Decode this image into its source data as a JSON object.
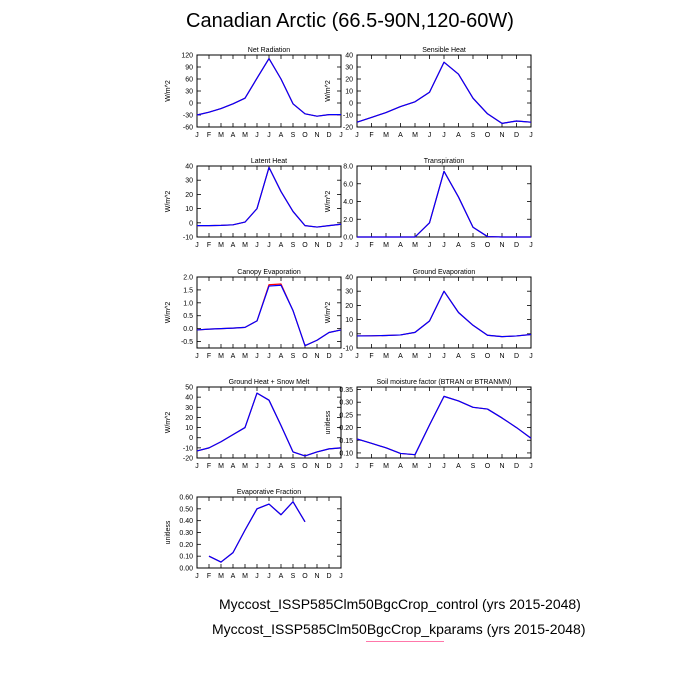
{
  "title": "Canadian Arctic (66.5-90N,120-60W)",
  "legend": [
    {
      "label": "Myccost_ISSP585Clm50BgcCrop_control (yrs 2015-2048)",
      "color": "#ff0000"
    },
    {
      "label": "Myccost_ISSP585Clm50BgcCrop_kparams (yrs 2015-2048)",
      "color": "#0000ff"
    }
  ],
  "colors": {
    "control": "#ff0000",
    "kparams": "#0000ff",
    "legend_marker": "#ff77aa"
  },
  "chart_data": [
    {
      "type": "line",
      "title": "Net Radiation",
      "ylabel": "W/m^2",
      "categories": [
        "J",
        "F",
        "M",
        "A",
        "M",
        "J",
        "J",
        "A",
        "S",
        "O",
        "N",
        "D",
        "J"
      ],
      "yticks": [
        120,
        90,
        60,
        30,
        0,
        -30,
        -60
      ],
      "ylim": [
        -60,
        120
      ],
      "series": [
        {
          "values": [
            -30,
            -23,
            -14,
            -2,
            12,
            62,
            111,
            60,
            -2,
            -27,
            -33,
            -29,
            -29
          ]
        },
        {
          "values": [
            -30,
            -23,
            -14,
            -2,
            12,
            62,
            111,
            60,
            -2,
            -27,
            -33,
            -29,
            -29
          ]
        }
      ]
    },
    {
      "type": "line",
      "title": "Sensible Heat",
      "ylabel": "W/m^2",
      "categories": [
        "J",
        "F",
        "M",
        "A",
        "M",
        "J",
        "J",
        "A",
        "S",
        "O",
        "N",
        "D",
        "J"
      ],
      "yticks": [
        40,
        30,
        20,
        10,
        0,
        -10,
        -20
      ],
      "ylim": [
        -20,
        40
      ],
      "series": [
        {
          "values": [
            -16,
            -12,
            -8,
            -3,
            1,
            9,
            34,
            24,
            4,
            -9,
            -17,
            -15,
            -16
          ]
        },
        {
          "values": [
            -16,
            -12,
            -8,
            -3,
            1,
            9,
            34,
            24,
            4,
            -9,
            -17,
            -15,
            -16
          ]
        }
      ]
    },
    {
      "type": "line",
      "title": "Latent Heat",
      "ylabel": "W/m^2",
      "categories": [
        "J",
        "F",
        "M",
        "A",
        "M",
        "J",
        "J",
        "A",
        "S",
        "O",
        "N",
        "D",
        "J"
      ],
      "yticks": [
        40,
        30,
        20,
        10,
        0,
        -10
      ],
      "ylim": [
        -10,
        40
      ],
      "series": [
        {
          "values": [
            -2,
            -2,
            -1.8,
            -1.4,
            0.5,
            10,
            39,
            22,
            8,
            -2,
            -3,
            -2,
            -1
          ]
        },
        {
          "values": [
            -2,
            -2,
            -1.8,
            -1.4,
            0.5,
            10,
            39,
            22,
            8,
            -2,
            -3,
            -2,
            -1
          ]
        }
      ]
    },
    {
      "type": "line",
      "title": "Transpiration",
      "ylabel": "W/m^2",
      "categories": [
        "J",
        "F",
        "M",
        "A",
        "M",
        "J",
        "J",
        "A",
        "S",
        "O",
        "N",
        "D",
        "J"
      ],
      "yticks": [
        "8.0",
        "6.0",
        "4.0",
        "2.0",
        "0.0"
      ],
      "ylim": [
        0,
        8
      ],
      "series": [
        {
          "values": [
            0,
            0,
            0,
            0,
            0,
            1.6,
            7.4,
            4.5,
            1.1,
            0.05,
            0,
            0,
            0
          ]
        },
        {
          "values": [
            0,
            0,
            0,
            0,
            0,
            1.6,
            7.4,
            4.5,
            1.1,
            0.05,
            0,
            0,
            0
          ]
        }
      ]
    },
    {
      "type": "line",
      "title": "Canopy Evaporation",
      "ylabel": "W/m^2",
      "categories": [
        "J",
        "F",
        "M",
        "A",
        "M",
        "J",
        "J",
        "A",
        "S",
        "O",
        "N",
        "D",
        "J"
      ],
      "yticks": [
        "2.0",
        "1.5",
        "1.0",
        "0.5",
        "0.0",
        "-0.5"
      ],
      "ylim": [
        -0.75,
        2
      ],
      "series": [
        {
          "values": [
            -0.05,
            -0.02,
            0,
            0.02,
            0.05,
            0.3,
            1.7,
            1.73,
            0.7,
            -0.66,
            -0.45,
            -0.15,
            -0.05
          ]
        },
        {
          "values": [
            -0.05,
            -0.02,
            0,
            0.02,
            0.05,
            0.3,
            1.65,
            1.68,
            0.7,
            -0.66,
            -0.45,
            -0.15,
            -0.05
          ]
        }
      ]
    },
    {
      "type": "line",
      "title": "Ground Evaporation",
      "ylabel": "W/m^2",
      "categories": [
        "J",
        "F",
        "M",
        "A",
        "M",
        "J",
        "J",
        "A",
        "S",
        "O",
        "N",
        "D",
        "J"
      ],
      "yticks": [
        40,
        30,
        20,
        10,
        0,
        -10
      ],
      "ylim": [
        -10,
        40
      ],
      "series": [
        {
          "values": [
            -1.5,
            -1.4,
            -1.2,
            -0.8,
            1,
            9,
            30,
            15,
            6,
            -1,
            -2,
            -1.5,
            -0.5
          ]
        },
        {
          "values": [
            -1.5,
            -1.4,
            -1.2,
            -0.8,
            1,
            9,
            30,
            15,
            6,
            -1,
            -2,
            -1.5,
            -0.5
          ]
        }
      ]
    },
    {
      "type": "line",
      "title": "Ground Heat + Snow Melt",
      "ylabel": "W/m^2",
      "categories": [
        "J",
        "F",
        "M",
        "A",
        "M",
        "J",
        "J",
        "A",
        "S",
        "O",
        "N",
        "D",
        "J"
      ],
      "yticks": [
        50,
        40,
        30,
        20,
        10,
        0,
        -10,
        -20
      ],
      "ylim": [
        -20,
        50
      ],
      "series": [
        {
          "values": [
            -13,
            -10,
            -4,
            3,
            10,
            44,
            37,
            12,
            -14,
            -18,
            -14,
            -11,
            -10
          ]
        },
        {
          "values": [
            -13,
            -10,
            -4,
            3,
            10,
            44,
            37,
            12,
            -14,
            -18,
            -14,
            -11,
            -10
          ]
        }
      ]
    },
    {
      "type": "line",
      "title": "Soil moisture factor (BTRAN or BTRANMN)",
      "ylabel": "unitless",
      "categories": [
        "J",
        "F",
        "M",
        "A",
        "M",
        "J",
        "J",
        "A",
        "S",
        "O",
        "N",
        "D",
        "J"
      ],
      "yticks": [
        "0.35",
        "0.30",
        "0.25",
        "0.20",
        "0.15",
        "0.10"
      ],
      "ylim": [
        0.08,
        0.36
      ],
      "series": [
        {
          "values": [
            0.155,
            0.138,
            0.12,
            0.098,
            0.093,
            0.21,
            0.323,
            0.305,
            0.28,
            0.273,
            0.238,
            0.2,
            0.158
          ]
        },
        {
          "values": [
            0.155,
            0.138,
            0.12,
            0.098,
            0.093,
            0.21,
            0.323,
            0.305,
            0.28,
            0.273,
            0.238,
            0.2,
            0.158
          ]
        }
      ]
    },
    {
      "type": "line",
      "title": "Evaporative Fraction",
      "ylabel": "unitless",
      "categories": [
        "J",
        "F",
        "M",
        "A",
        "M",
        "J",
        "J",
        "A",
        "S",
        "O",
        "N",
        "D",
        "J"
      ],
      "yticks": [
        "0.60",
        "0.50",
        "0.40",
        "0.30",
        "0.20",
        "0.10",
        "0.00"
      ],
      "ylim": [
        0,
        0.6
      ],
      "series": [
        {
          "values": [
            null,
            0.1,
            0.05,
            0.13,
            0.32,
            0.5,
            0.54,
            0.45,
            0.56,
            0.39,
            null,
            null,
            null
          ]
        },
        {
          "values": [
            null,
            0.1,
            0.05,
            0.13,
            0.32,
            0.5,
            0.54,
            0.45,
            0.56,
            0.39,
            null,
            null,
            null
          ]
        }
      ]
    }
  ]
}
